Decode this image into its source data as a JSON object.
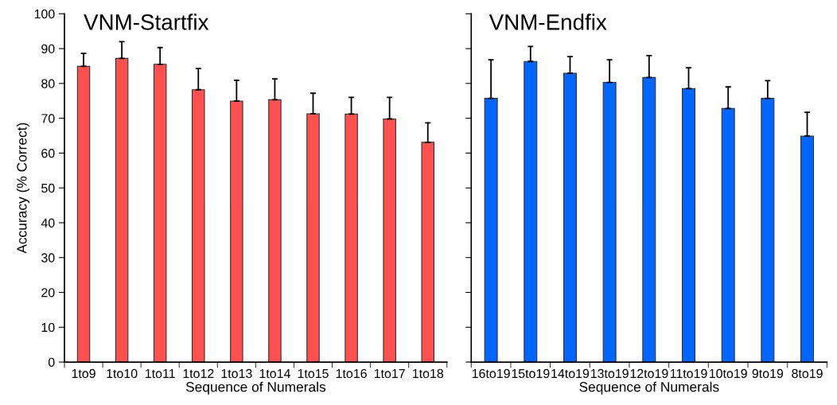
{
  "chart_data": [
    {
      "type": "bar",
      "title": "VNM-Startfix",
      "xlabel": "Sequence of Numerals",
      "ylabel": "Accuracy (% Correct)",
      "categories": [
        "1to9",
        "1to10",
        "1to11",
        "1to12",
        "1to13",
        "1to14",
        "1to15",
        "1to16",
        "1to17",
        "1to18"
      ],
      "series": [
        {
          "color": "#ff5050",
          "values": [
            84.9,
            87.2,
            85.5,
            78.2,
            74.9,
            75.3,
            71.3,
            71.2,
            69.8,
            63.1
          ],
          "errors": [
            [
              84.9,
              88.6
            ],
            [
              87.2,
              92.0
            ],
            [
              85.5,
              90.3
            ],
            [
              78.2,
              84.3
            ],
            [
              74.9,
              80.9
            ],
            [
              75.3,
              81.3
            ],
            [
              71.3,
              77.2
            ],
            [
              71.2,
              76.0
            ],
            [
              69.8,
              76.0
            ],
            [
              63.1,
              68.7
            ]
          ]
        }
      ],
      "ylim": [
        0,
        100
      ],
      "yticks": [
        0,
        10,
        20,
        30,
        40,
        50,
        60,
        70,
        80,
        90,
        100
      ],
      "grid": false
    },
    {
      "type": "bar",
      "title": "VNM-Endfix",
      "xlabel": "Sequence of Numerals",
      "categories": [
        "16to19",
        "15to19",
        "14to19",
        "13to19",
        "12to19",
        "11to19",
        "10to19",
        "9to19",
        "8to19"
      ],
      "series": [
        {
          "color": "#0066ff",
          "values": [
            75.7,
            86.3,
            82.9,
            80.3,
            81.7,
            78.5,
            72.8,
            75.7,
            64.9
          ],
          "errors": [
            [
              75.7,
              86.8
            ],
            [
              86.3,
              90.6
            ],
            [
              82.9,
              87.7
            ],
            [
              80.3,
              86.8
            ],
            [
              81.7,
              88.0
            ],
            [
              78.5,
              84.5
            ],
            [
              72.8,
              79.0
            ],
            [
              75.7,
              80.8
            ],
            [
              64.9,
              71.7
            ]
          ]
        }
      ],
      "ylim": [
        0,
        100
      ],
      "yticks": [
        0,
        10,
        20,
        30,
        40,
        50,
        60,
        70,
        80,
        90,
        100
      ],
      "tick_labels": "x",
      "grid": false
    }
  ]
}
